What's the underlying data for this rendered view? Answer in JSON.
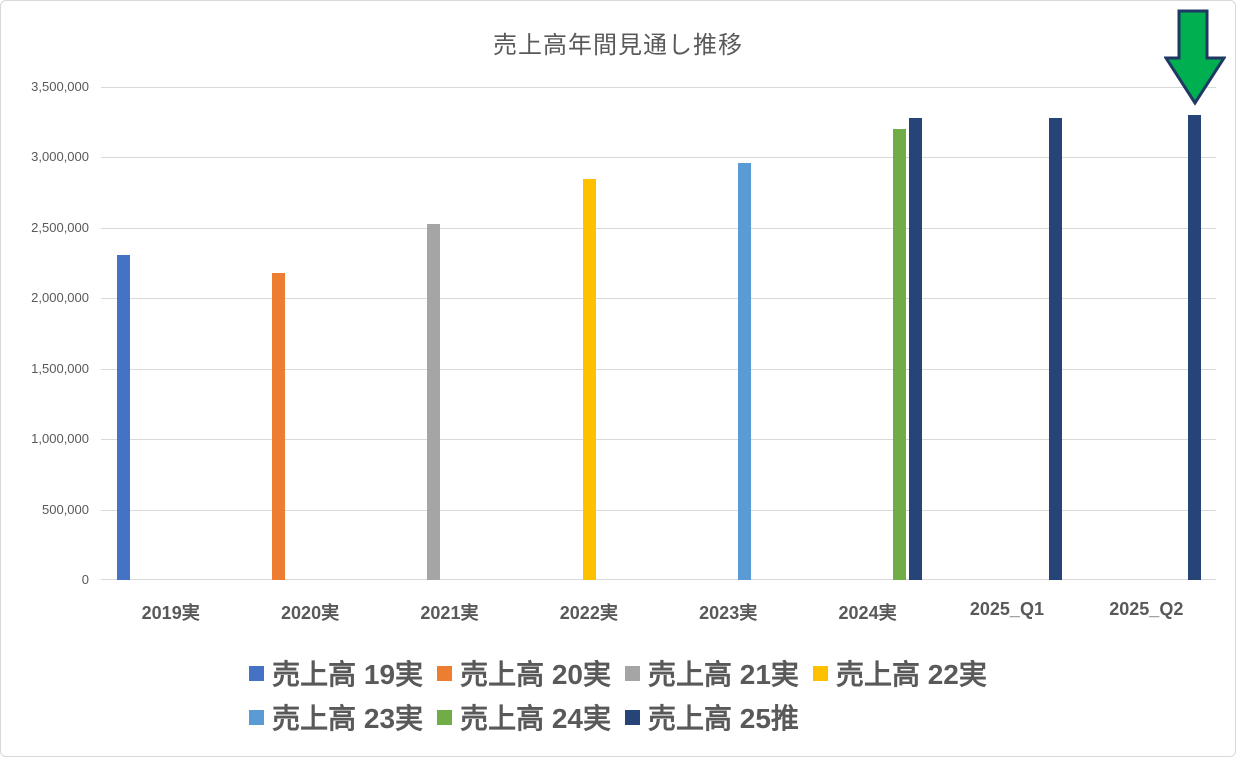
{
  "chart_data": {
    "type": "bar",
    "title": "売上高年間見通し推移",
    "xlabel": "",
    "ylabel": "",
    "ylim": [
      0,
      3500000
    ],
    "ytick_interval": 500000,
    "y_tick_labels": [
      "3,500,000",
      "3,000,000",
      "2,500,000",
      "2,000,000",
      "1,500,000",
      "1,000,000",
      "500,000",
      "0"
    ],
    "grid": true,
    "gridline_color": "#d9d9d9",
    "text_color": "#595959",
    "legend_position": "bottom",
    "legend_rows": [
      4,
      3
    ],
    "categories": [
      "2019実",
      "2020実",
      "2021実",
      "2022実",
      "2023実",
      "2024実",
      "2025_Q1",
      "2025_Q2"
    ],
    "series": [
      {
        "name": "売上高 19実",
        "color": "#4472C4",
        "values": [
          2310000,
          null,
          null,
          null,
          null,
          null,
          null,
          null
        ]
      },
      {
        "name": "売上高 20実",
        "color": "#ED7D31",
        "values": [
          null,
          2180000,
          null,
          null,
          null,
          null,
          null,
          null
        ]
      },
      {
        "name": "売上高 21実",
        "color": "#A5A5A5",
        "values": [
          null,
          null,
          2530000,
          null,
          null,
          null,
          null,
          null
        ]
      },
      {
        "name": "売上高 22実",
        "color": "#FFC000",
        "values": [
          null,
          null,
          null,
          2850000,
          null,
          null,
          null,
          null
        ]
      },
      {
        "name": "売上高 23実",
        "color": "#5B9BD5",
        "values": [
          null,
          null,
          null,
          null,
          2960000,
          null,
          null,
          null
        ]
      },
      {
        "name": "売上高 24実",
        "color": "#70AD47",
        "values": [
          null,
          null,
          null,
          null,
          null,
          3200000,
          null,
          null
        ]
      },
      {
        "name": "売上高 25推",
        "color": "#264478",
        "values": [
          null,
          null,
          null,
          null,
          null,
          3280000,
          3280000,
          3300000
        ]
      }
    ],
    "annotation": {
      "type": "down-arrow",
      "target_category": "2025_Q2",
      "fill": "#00B050",
      "border": "#1F3864"
    }
  }
}
